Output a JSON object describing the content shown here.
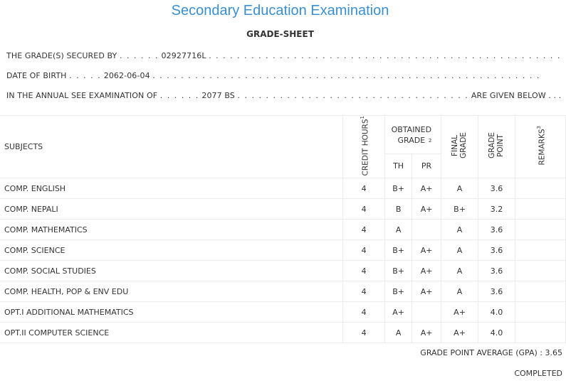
{
  "header": {
    "title": "Secondary Education Examination",
    "subtitle": "GRADE-SHEET"
  },
  "info": {
    "line1_label": "THE GRADE(S) SECURED BY",
    "line1_dots_before": ". . . . . .",
    "symbol_no": "02927716L",
    "line1_dots_after": ". . . . . . . . . . . . . . . . . . . . . . . . . . . . . . . . . . . . . . . . . . . . . . . . . .",
    "line2_label": "DATE OF BIRTH",
    "line2_dots_before": ". . . . .",
    "dob": "2062-06-04",
    "line2_dots_after": ". . . . . . . . . . . . . . . . . . . . . . . . . . . . . . . . . . . . . . . . . . . . . . . . . . . . . . .",
    "line3_label": "IN THE ANNUAL SEE EXAMINATION OF",
    "line3_dots_before": ". . . . . .",
    "exam_year": "2077 BS",
    "line3_dots_after": ". . . . . . . . . . . . . . . . . . . . . . . . . . . . . . . . .",
    "line3_tail": "ARE GIVEN BELOW . . ."
  },
  "table": {
    "headers": {
      "subjects": "SUBJECTS",
      "credit_hours": "CREDIT HOURS",
      "credit_hours_sup": "1",
      "obtained_grade": "OBTAINED GRADE",
      "obtained_grade_sup": "2",
      "th": "TH",
      "pr": "PR",
      "final_grade": "FINAL GRADE",
      "grade_point": "GRADE POINT",
      "remarks": "REMARKS",
      "remarks_sup": "3"
    },
    "rows": [
      {
        "subject": "COMP. ENGLISH",
        "credit": "4",
        "th": "B+",
        "pr": "A+",
        "final": "A",
        "gp": "3.6",
        "remarks": ""
      },
      {
        "subject": "COMP. NEPALI",
        "credit": "4",
        "th": "B",
        "pr": "A+",
        "final": "B+",
        "gp": "3.2",
        "remarks": ""
      },
      {
        "subject": "COMP. MATHEMATICS",
        "credit": "4",
        "th": "A",
        "pr": "",
        "final": "A",
        "gp": "3.6",
        "remarks": ""
      },
      {
        "subject": "COMP. SCIENCE",
        "credit": "4",
        "th": "B+",
        "pr": "A+",
        "final": "A",
        "gp": "3.6",
        "remarks": ""
      },
      {
        "subject": "COMP. SOCIAL STUDIES",
        "credit": "4",
        "th": "B+",
        "pr": "A+",
        "final": "A",
        "gp": "3.6",
        "remarks": ""
      },
      {
        "subject": "COMP. HEALTH, POP & ENV EDU",
        "credit": "4",
        "th": "B+",
        "pr": "A+",
        "final": "A",
        "gp": "3.6",
        "remarks": ""
      },
      {
        "subject": "OPT.I ADDITIONAL MATHEMATICS",
        "credit": "4",
        "th": "A+",
        "pr": "",
        "final": "A+",
        "gp": "4.0",
        "remarks": ""
      },
      {
        "subject": "OPT.II COMPUTER SCIENCE",
        "credit": "4",
        "th": "A",
        "pr": "A+",
        "final": "A+",
        "gp": "4.0",
        "remarks": ""
      }
    ]
  },
  "footer": {
    "gpa_label": "GRADE POINT AVERAGE (GPA) :",
    "gpa_value": "3.65",
    "status": "COMPLETED"
  },
  "colors": {
    "title": "#3a8fd0",
    "text": "#333333",
    "border": "#ececec"
  }
}
